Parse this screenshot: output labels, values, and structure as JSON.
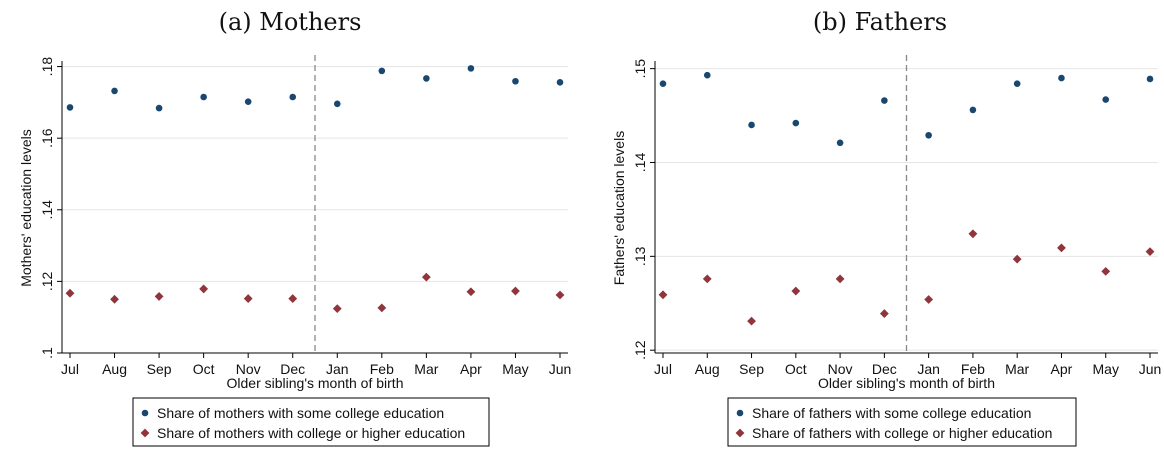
{
  "chart_data": [
    {
      "type": "scatter",
      "title": "(a) Mothers",
      "xlabel": "Older sibling's month of birth",
      "ylabel": "Mothers' education levels",
      "categories": [
        "Jul",
        "Aug",
        "Sep",
        "Oct",
        "Nov",
        "Dec",
        "Jan",
        "Feb",
        "Mar",
        "Apr",
        "May",
        "Jun"
      ],
      "yticks": [
        ".1",
        ".12",
        ".14",
        ".16",
        ".18"
      ],
      "ylim": [
        0.1,
        0.181
      ],
      "grid": true,
      "vline_between": [
        "Dec",
        "Jan"
      ],
      "legend_position": "bottom",
      "series": [
        {
          "name": "Share of mothers with some college education",
          "marker": "circle",
          "color": "#1a476f",
          "values": [
            0.1686,
            0.1732,
            0.1684,
            0.1715,
            0.1702,
            0.1715,
            0.1696,
            0.1788,
            0.1767,
            0.1795,
            0.1759,
            0.1756
          ]
        },
        {
          "name": "Share of mothers with college or higher education",
          "marker": "diamond",
          "color": "#90353b",
          "values": [
            0.1167,
            0.115,
            0.1158,
            0.1179,
            0.1152,
            0.1152,
            0.1124,
            0.1126,
            0.1212,
            0.1171,
            0.1173,
            0.1162
          ]
        }
      ]
    },
    {
      "type": "scatter",
      "title": "(b) Fathers",
      "xlabel": "Older sibling's month of birth",
      "ylabel": "Fathers' education levels",
      "categories": [
        "Jul",
        "Aug",
        "Sep",
        "Oct",
        "Nov",
        "Dec",
        "Jan",
        "Feb",
        "Mar",
        "Apr",
        "May",
        "Jun"
      ],
      "yticks": [
        ".12",
        ".13",
        ".14",
        ".15"
      ],
      "ylim": [
        0.1197,
        0.1506
      ],
      "grid": true,
      "vline_between": [
        "Dec",
        "Jan"
      ],
      "legend_position": "bottom",
      "series": [
        {
          "name": "Share of fathers with some college education",
          "marker": "circle",
          "color": "#1a476f",
          "values": [
            0.1484,
            0.1493,
            0.144,
            0.1442,
            0.1421,
            0.1466,
            0.1429,
            0.1456,
            0.1484,
            0.149,
            0.1467,
            0.1489
          ]
        },
        {
          "name": "Share of fathers with college or higher education",
          "marker": "diamond",
          "color": "#90353b",
          "values": [
            0.1259,
            0.1276,
            0.1231,
            0.1263,
            0.1276,
            0.1239,
            0.1254,
            0.1324,
            0.1297,
            0.1309,
            0.1284,
            0.1305
          ]
        }
      ]
    }
  ]
}
